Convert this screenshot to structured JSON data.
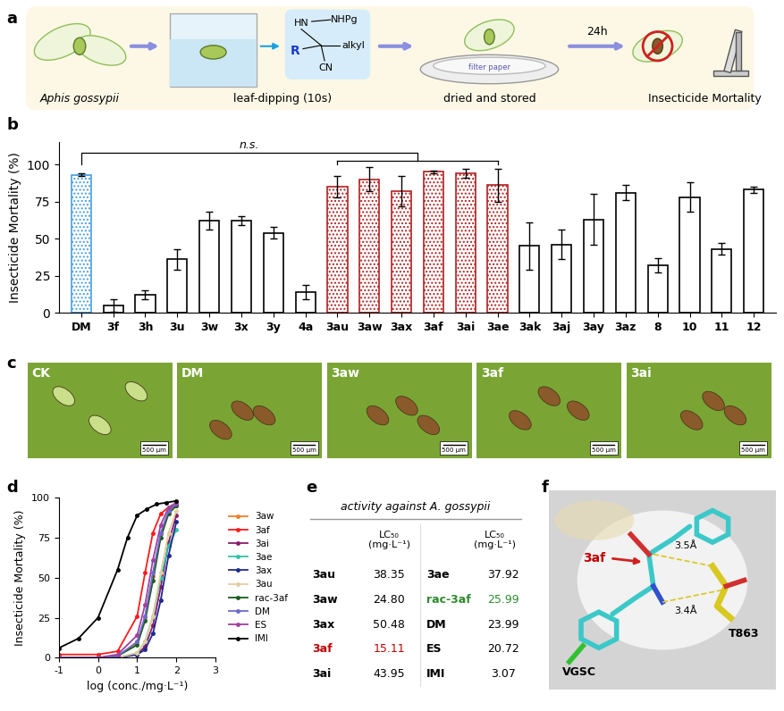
{
  "panel_labels": [
    "a",
    "b",
    "c",
    "d",
    "e",
    "f"
  ],
  "panel_a": {
    "steps": [
      "Aphis gossypii",
      "leaf-dipping (10s)",
      "dried and stored",
      "Insecticide Mortality"
    ],
    "time": "24h",
    "filter_label": "filter paper",
    "structure": {
      "amine": "HN",
      "protected": "NHPg",
      "group": "R",
      "chain": "alkyl",
      "nitrile": "CN"
    }
  },
  "chart_data": [
    {
      "type": "bar",
      "y_label": "Insecticide Mortality (%)",
      "categories": [
        "DM",
        "3f",
        "3h",
        "3u",
        "3w",
        "3x",
        "3y",
        "4a",
        "3au",
        "3aw",
        "3ax",
        "3af",
        "3ai",
        "3ae",
        "3ak",
        "3aj",
        "3ay",
        "3az",
        "8",
        "10",
        "11",
        "12"
      ],
      "values": [
        93,
        5,
        12,
        36,
        62,
        62,
        54,
        14,
        85,
        90,
        82,
        95,
        94,
        86,
        45,
        46,
        63,
        81,
        32,
        78,
        43,
        83
      ],
      "errors": [
        1,
        4,
        3,
        7,
        6,
        3,
        4,
        5,
        7,
        8,
        10,
        1,
        3,
        11,
        16,
        10,
        17,
        5,
        5,
        10,
        4,
        2
      ],
      "colors": [
        "#4a9fe0",
        "#000000",
        "#000000",
        "#000000",
        "#000000",
        "#000000",
        "#000000",
        "#000000",
        "#b22222",
        "#b22222",
        "#b22222",
        "#b22222",
        "#b22222",
        "#b22222",
        "#000000",
        "#000000",
        "#000000",
        "#000000",
        "#000000",
        "#000000",
        "#000000",
        "#000000"
      ],
      "ylim": [
        0,
        115
      ],
      "yticks": [
        0,
        25,
        50,
        75,
        100
      ],
      "annotations": [
        {
          "text": "n.s.",
          "from": "DM",
          "to": [
            "3au",
            "3ae"
          ]
        }
      ]
    },
    {
      "type": "line",
      "x_label": "log (conc./mg·L⁻¹)",
      "y_label": "Insecticide Mortality (%)",
      "xlim": [
        -1,
        3
      ],
      "xticks": [
        -1,
        0,
        1,
        2,
        3
      ],
      "ylim": [
        0,
        100
      ],
      "yticks": [
        0,
        25,
        50,
        75,
        100
      ],
      "legend": "right",
      "marker": "circle",
      "series": [
        {
          "name": "3aw",
          "color": "#f07f2a",
          "x": [
            -1,
            0,
            0.5,
            1.0,
            1.2,
            1.4,
            1.6,
            1.8,
            2.0
          ],
          "values": [
            0,
            0,
            1,
            9,
            25,
            51,
            77,
            91,
            96
          ]
        },
        {
          "name": "3af",
          "color": "#ff1a1a",
          "x": [
            -1,
            0,
            0.5,
            1.0,
            1.2,
            1.4,
            1.6,
            1.8,
            2.0
          ],
          "values": [
            2,
            2,
            4,
            26,
            53,
            78,
            90,
            94,
            95
          ]
        },
        {
          "name": "3ai",
          "color": "#8b1a6b",
          "x": [
            -1,
            0,
            0.5,
            1.0,
            1.2,
            1.4,
            1.6,
            1.8,
            2.0
          ],
          "values": [
            0,
            0,
            0,
            2,
            7,
            20,
            44,
            72,
            89
          ]
        },
        {
          "name": "3ae",
          "color": "#2ec4a6",
          "x": [
            -1,
            0,
            0.5,
            1.0,
            1.2,
            1.4,
            1.6,
            1.8,
            2.0
          ],
          "values": [
            0,
            0,
            0,
            3,
            10,
            26,
            50,
            70,
            80
          ]
        },
        {
          "name": "3ax",
          "color": "#1f2a8c",
          "x": [
            -1,
            0,
            0.5,
            1.0,
            1.2,
            1.4,
            1.6,
            1.8,
            2.0
          ],
          "values": [
            0,
            0,
            0,
            2,
            5,
            15,
            36,
            64,
            85
          ]
        },
        {
          "name": "3au",
          "color": "#e0cfa0",
          "x": [
            -1,
            0,
            0.5,
            1.0,
            1.2,
            1.4,
            1.6,
            1.8,
            2.0
          ],
          "values": [
            0,
            0,
            0,
            3,
            10,
            26,
            53,
            78,
            92
          ]
        },
        {
          "name": "rac-3af",
          "color": "#1a5c1a",
          "x": [
            -1,
            0,
            0.5,
            1.0,
            1.2,
            1.4,
            1.6,
            1.8,
            2.0
          ],
          "values": [
            0,
            0,
            1,
            8,
            23,
            48,
            75,
            90,
            95
          ]
        },
        {
          "name": "DM",
          "color": "#6a6ad0",
          "x": [
            -1,
            0,
            0.5,
            1.0,
            1.2,
            1.4,
            1.6,
            1.8,
            2.0
          ],
          "values": [
            0,
            0,
            1,
            10,
            26,
            53,
            78,
            92,
            96
          ]
        },
        {
          "name": "ES",
          "color": "#a040a0",
          "x": [
            -1,
            0,
            0.5,
            1.0,
            1.2,
            1.4,
            1.6,
            1.8,
            2.0
          ],
          "values": [
            0,
            0,
            2,
            14,
            33,
            61,
            83,
            94,
            97
          ]
        },
        {
          "name": "IMI",
          "color": "#000000",
          "x": [
            -1,
            -0.5,
            0,
            0.5,
            0.75,
            1.0,
            1.25,
            1.5,
            1.75,
            2.0
          ],
          "values": [
            6,
            12,
            25,
            55,
            75,
            89,
            93,
            96,
            97,
            98
          ]
        }
      ]
    }
  ],
  "panel_c": {
    "images": [
      "CK",
      "DM",
      "3aw",
      "3af",
      "3ai"
    ],
    "scale_bar": "500 μm"
  },
  "panel_e": {
    "title": "activity against A. gossypii",
    "headers": [
      "LC₅₀\n(mg·L⁻¹)",
      "LC₅₀\n(mg·L⁻¹)"
    ],
    "rows": [
      [
        {
          "name": "3au",
          "value": "38.35"
        },
        {
          "name": "3ae",
          "value": "37.92"
        }
      ],
      [
        {
          "name": "3aw",
          "value": "24.80"
        },
        {
          "name": "rac-3af",
          "value": "25.99",
          "color": "#2e8b2e"
        }
      ],
      [
        {
          "name": "3ax",
          "value": "50.48"
        },
        {
          "name": "DM",
          "value": "23.99"
        }
      ],
      [
        {
          "name": "3af",
          "value": "15.11",
          "color": "#c00000"
        },
        {
          "name": "ES",
          "value": "20.72"
        }
      ],
      [
        {
          "name": "3ai",
          "value": "43.95"
        },
        {
          "name": "IMI",
          "value": "3.07"
        }
      ]
    ]
  },
  "panel_f": {
    "ligand": "3af",
    "distances": [
      "3.5Å",
      "3.4Å"
    ],
    "residue": "T863",
    "protein": "VGSC"
  }
}
